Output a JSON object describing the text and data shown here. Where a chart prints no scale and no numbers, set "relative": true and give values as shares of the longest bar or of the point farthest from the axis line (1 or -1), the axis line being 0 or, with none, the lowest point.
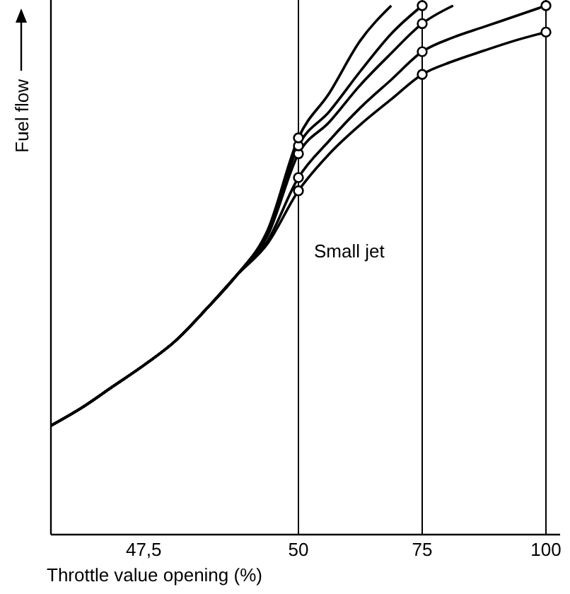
{
  "chart_data": {
    "type": "line",
    "relative": true,
    "xlabel": "Throttle value opening (%)",
    "ylabel": "Fuel flow",
    "categories": [
      null,
      null,
      null,
      "47,5",
      null,
      null,
      null,
      null,
      "50",
      null,
      null,
      null,
      "75",
      null,
      null,
      null,
      "100"
    ],
    "series": [
      {
        "color": "#000000",
        "values": [
          0.206,
          0.24,
          0.28,
          0.32,
          0.365,
          0.425,
          0.49,
          0.55,
          0.65,
          0.72,
          0.775,
          0.823,
          0.87,
          0.895,
          0.915,
          0.934,
          0.95
        ]
      },
      {
        "color": "#000000",
        "values": [
          0.206,
          0.24,
          0.28,
          0.32,
          0.365,
          0.425,
          0.49,
          0.555,
          0.675,
          0.745,
          0.807,
          0.86,
          0.913,
          0.94,
          0.96,
          0.98,
          1
        ]
      },
      {
        "color": "#000000",
        "values": [
          0.206,
          0.24,
          0.28,
          0.32,
          0.365,
          0.425,
          0.49,
          0.565,
          0.72,
          0.78,
          0.85,
          0.91,
          0.966,
          1,
          null,
          null,
          null
        ]
      },
      {
        "color": "#000000",
        "values": [
          0.206,
          0.24,
          0.28,
          0.32,
          0.365,
          0.425,
          0.49,
          0.57,
          0.735,
          0.8,
          0.876,
          0.947,
          1,
          null,
          null,
          null,
          null
        ]
      },
      {
        "color": "#000000",
        "values": [
          0.206,
          0.24,
          0.28,
          0.32,
          0.365,
          0.425,
          0.49,
          0.575,
          0.75,
          0.835,
          0.934,
          1,
          null,
          null,
          null,
          null,
          null
        ]
      },
      {
        "type": "scatter",
        "marker": "circle",
        "color": "#000000",
        "x": [
          "50",
          "50",
          "50",
          "50",
          "50",
          "75",
          "75",
          "75",
          "75",
          "100",
          "100"
        ],
        "values": [
          0.65,
          0.675,
          0.72,
          0.735,
          0.75,
          0.87,
          0.913,
          0.966,
          1,
          0.95,
          1
        ]
      }
    ],
    "ref_lines": [
      {
        "axis": "x",
        "value": "50",
        "color": "#000000"
      },
      {
        "axis": "x",
        "value": "75",
        "color": "#000000"
      },
      {
        "axis": "x",
        "value": "100",
        "color": "#000000"
      }
    ],
    "annotations": [
      "Small jet"
    ],
    "grid": false
  }
}
